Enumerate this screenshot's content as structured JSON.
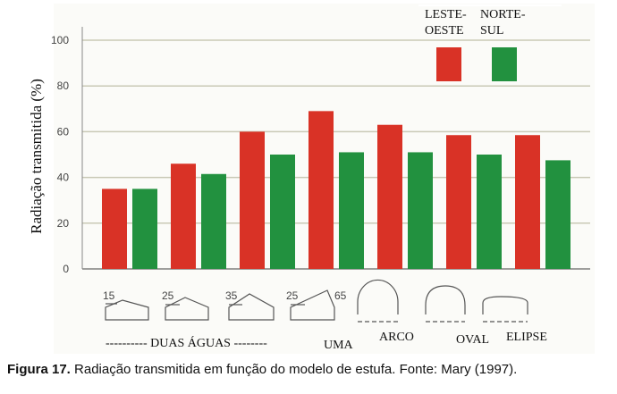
{
  "chart_data": {
    "type": "bar",
    "title": "",
    "xlabel": "",
    "ylabel": "Radiação transmitida (%)",
    "ylim": [
      0,
      100
    ],
    "yticks": [
      0,
      20,
      40,
      60,
      80,
      100
    ],
    "grid": true,
    "legend_position": "top-right",
    "categories": [
      "15",
      "25",
      "35",
      "25 / 65",
      "ARCO",
      "OVAL",
      "ELIPSE"
    ],
    "shape_labels": [
      "15",
      "25",
      "35",
      "25",
      "65"
    ],
    "group_labels": [
      "---------- DUAS ÁGUAS --------",
      "UMA",
      "ARCO",
      "OVAL",
      "ELIPSE"
    ],
    "series": [
      {
        "name": "LESTE-OESTE",
        "name_lines": [
          "LESTE-",
          "OESTE"
        ],
        "color": "#d93226",
        "values": [
          35,
          46,
          60,
          69,
          63,
          58.5,
          58.5
        ]
      },
      {
        "name": "NORTE-SUL",
        "name_lines": [
          "NORTE-",
          "SUL"
        ],
        "color": "#22913f",
        "values": [
          35,
          41.5,
          50,
          51,
          51,
          50,
          47.5
        ]
      }
    ]
  },
  "caption": {
    "label": "Figura 17.",
    "text": " Radiação transmitida em função do modelo de estufa. Fonte: Mary (1997)."
  }
}
